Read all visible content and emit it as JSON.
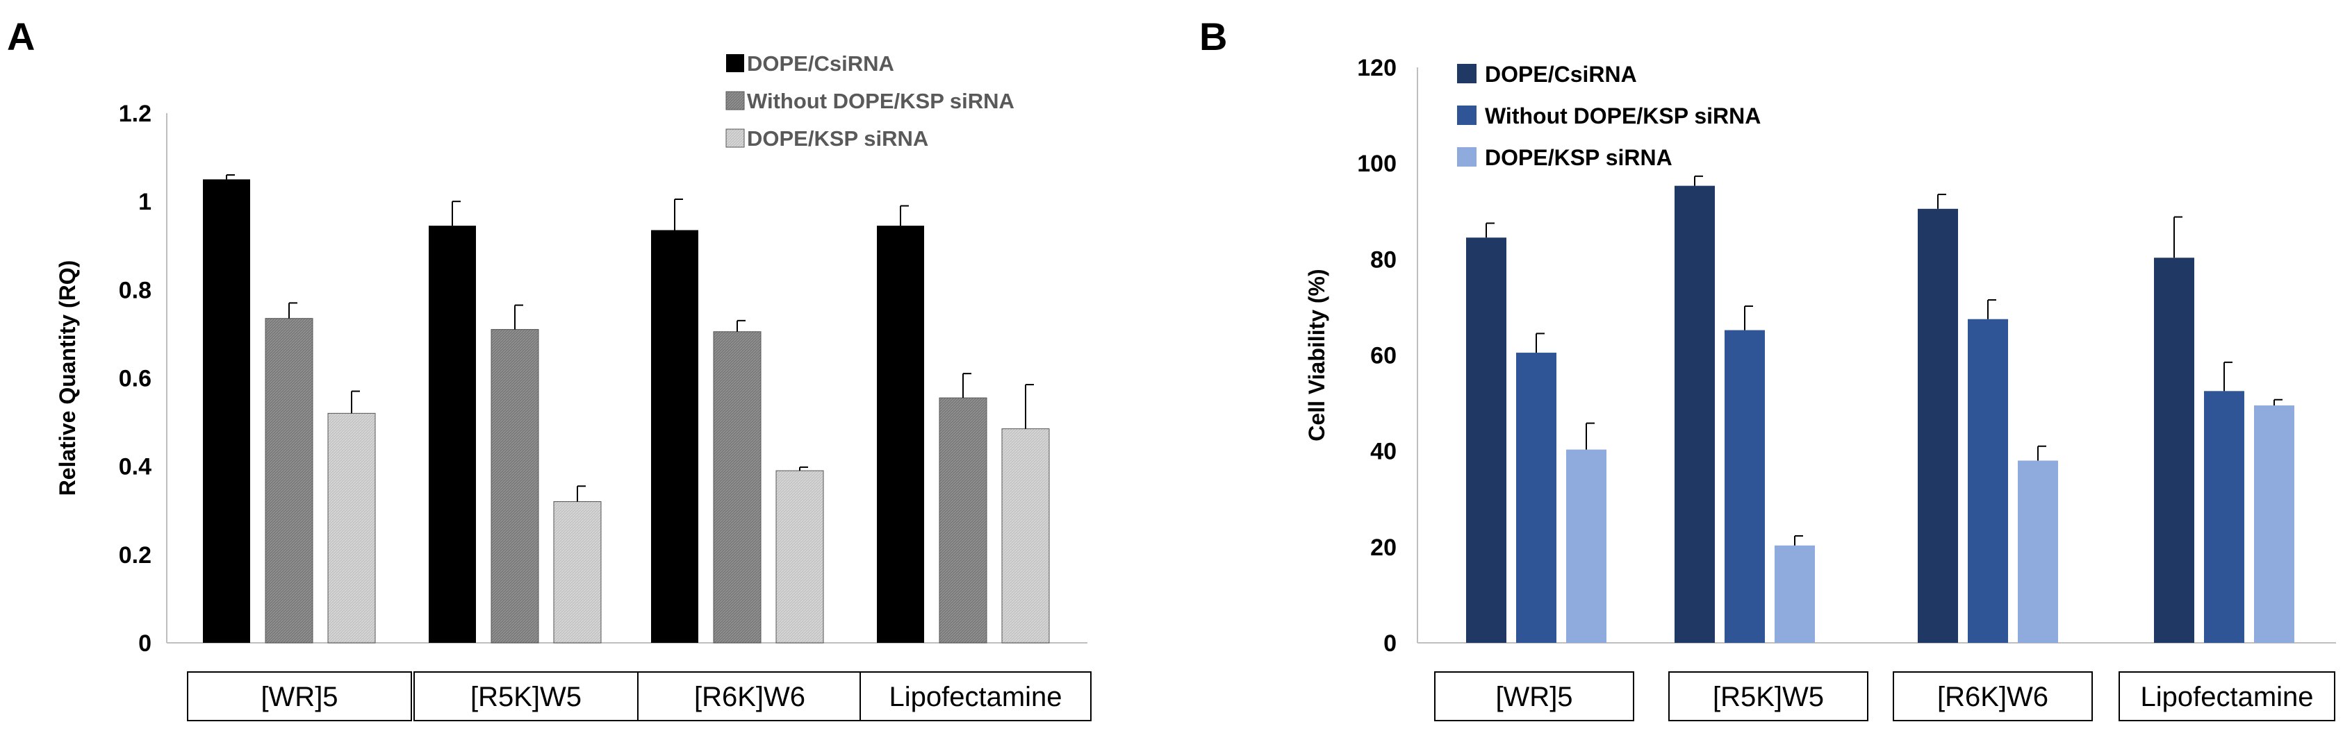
{
  "chart_data": [
    {
      "type": "bar",
      "panel_label": "A",
      "title": "",
      "xlabel": "",
      "ylabel": "Relative Quantity (RQ)",
      "ylim": [
        0,
        1.2
      ],
      "yticks": [
        "0",
        "0.2",
        "0.4",
        "0.6",
        "0.8",
        "1",
        "1.2"
      ],
      "legend_position": "top-right",
      "categories": [
        "[WR]5",
        "[R5K]W5",
        "[R6K]W6",
        "Lipofectamine"
      ],
      "series": [
        {
          "name": "DOPE/CsiRNA",
          "color": "#000000",
          "values": [
            1.05,
            0.945,
            0.935,
            0.945
          ],
          "errors": [
            0.01,
            0.055,
            0.07,
            0.045
          ]
        },
        {
          "name": "Without DOPE/KSP siRNA",
          "color": "#7f7f7f",
          "values": [
            0.735,
            0.71,
            0.705,
            0.555
          ],
          "errors": [
            0.035,
            0.055,
            0.025,
            0.055
          ]
        },
        {
          "name": "DOPE/KSP siRNA",
          "color": "#c8c8c8",
          "values": [
            0.52,
            0.32,
            0.39,
            0.485
          ],
          "errors": [
            0.05,
            0.035,
            0.008,
            0.1
          ]
        }
      ]
    },
    {
      "type": "bar",
      "panel_label": "B",
      "title": "",
      "xlabel": "",
      "ylabel": "Cell Viability (%)",
      "ylim": [
        0,
        120
      ],
      "yticks": [
        "0",
        "20",
        "40",
        "60",
        "80",
        "100",
        "120"
      ],
      "legend_position": "top-left",
      "categories": [
        "[WR]5",
        "[R5K]W5",
        "[R6K]W6",
        "Lipofectamine"
      ],
      "series": [
        {
          "name": "DOPE/CsiRNA",
          "color": "#203864",
          "values": [
            84.5,
            95.3,
            90.5,
            80.3
          ],
          "errors": [
            3,
            2,
            3,
            8.5
          ]
        },
        {
          "name": "Without DOPE/KSP siRNA",
          "color": "#2f5597",
          "values": [
            60.5,
            65.2,
            67.5,
            52.5
          ],
          "errors": [
            4,
            5,
            4,
            6
          ]
        },
        {
          "name": "DOPE/KSP siRNA",
          "color": "#8faadc",
          "values": [
            40.3,
            20.3,
            38,
            49.5
          ],
          "errors": [
            5.5,
            2,
            3,
            1.2
          ]
        }
      ]
    }
  ]
}
